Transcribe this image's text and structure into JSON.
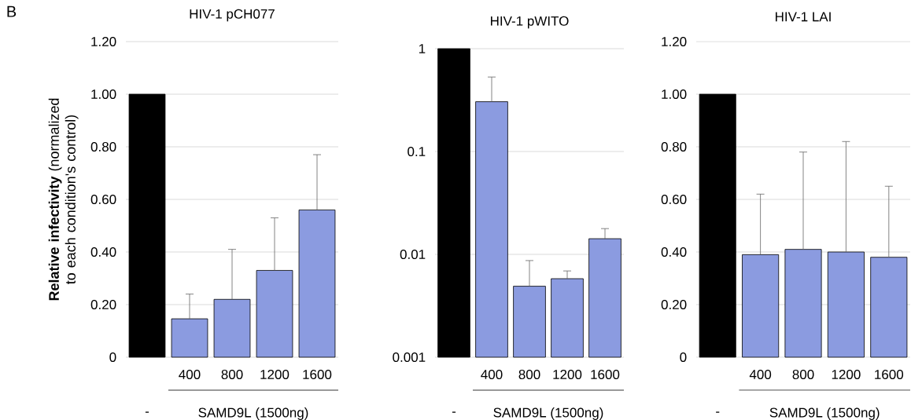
{
  "chart_data": [
    {
      "type": "bar",
      "title": "HIV-1 pCH077",
      "ylabel": "**Relative infectivity** (normalized to each condition's control)",
      "categories": [
        null,
        "400",
        "800",
        "1200",
        "1600"
      ],
      "values": [
        1.0,
        0.146,
        0.22,
        0.33,
        0.56
      ],
      "errors": [
        null,
        [
          0.146,
          0.24
        ],
        [
          0.22,
          0.41
        ],
        [
          0.33,
          0.53
        ],
        [
          0.56,
          0.77
        ]
      ],
      "colors": [
        "#000000",
        "#8b9be0",
        "#8b9be0",
        "#8b9be0",
        "#8b9be0"
      ],
      "ylim": [
        0,
        1.2
      ],
      "yticks": [
        0,
        {
          "value": 0.2,
          "label": "0.20"
        },
        {
          "value": 0.4,
          "label": "0.40"
        },
        {
          "value": 0.6,
          "label": "0.60"
        },
        {
          "value": 0.8,
          "label": "0.80"
        },
        {
          "value": 1.0,
          "label": "1.00"
        },
        {
          "value": 1.2,
          "label": "1.20"
        }
      ],
      "grid": "y",
      "annotations": [
        "SAMD9L (1500ng)",
        "-",
        "B"
      ]
    },
    {
      "type": "bar",
      "title": "HIV-1 pWITO",
      "categories": [
        null,
        "400",
        "800",
        "1200",
        "1600"
      ],
      "values": [
        1.0,
        0.305,
        0.0049,
        0.0058,
        0.0142
      ],
      "errors": [
        null,
        [
          0.305,
          0.53
        ],
        [
          0.0049,
          0.0087
        ],
        [
          0.0058,
          0.0069
        ],
        [
          0.0142,
          0.0178
        ]
      ],
      "colors": [
        "#000000",
        "#8b9be0",
        "#8b9be0",
        "#8b9be0",
        "#8b9be0"
      ],
      "ylim": [
        0.001,
        1
      ],
      "yticks": [
        0.001,
        0.01,
        0.1,
        1
      ],
      "log": true,
      "grid": "y",
      "annotations": [
        "SAMD9L (1500ng)",
        "-"
      ]
    },
    {
      "type": "bar",
      "title": "HIV-1 LAI",
      "categories": [
        null,
        "400",
        "800",
        "1200",
        "1600"
      ],
      "values": [
        1.0,
        0.39,
        0.41,
        0.4,
        0.38
      ],
      "errors": [
        null,
        [
          0.39,
          0.62
        ],
        [
          0.41,
          0.78
        ],
        [
          0.4,
          0.82
        ],
        [
          0.38,
          0.65
        ]
      ],
      "colors": [
        "#000000",
        "#8b9be0",
        "#8b9be0",
        "#8b9be0",
        "#8b9be0"
      ],
      "ylim": [
        0,
        1.2
      ],
      "yticks": [
        0,
        {
          "value": 0.2,
          "label": "0.20"
        },
        {
          "value": 0.4,
          "label": "0.40"
        },
        {
          "value": 0.6,
          "label": "0.60"
        },
        {
          "value": 0.8,
          "label": "0.80"
        },
        {
          "value": 1.0,
          "label": "1.00"
        },
        {
          "value": 1.2,
          "label": "1.20"
        }
      ],
      "grid": "y",
      "annotations": [
        "SAMD9L (1500ng)",
        "-"
      ]
    }
  ]
}
